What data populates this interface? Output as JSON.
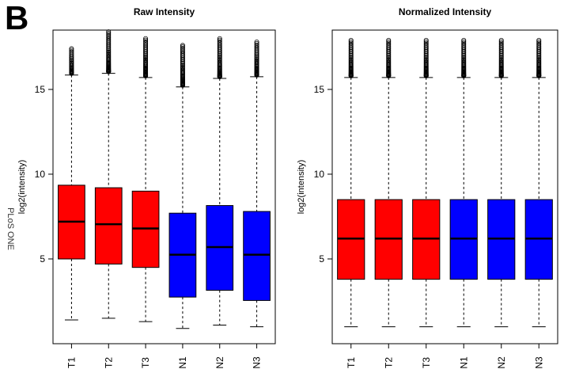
{
  "panel_label": "B",
  "side_text": "PLoS ONE",
  "colors": {
    "tumor": "#ff0000",
    "normal": "#0000ff",
    "outlier": "#000000"
  },
  "chart_data": [
    {
      "type": "box",
      "title": "Raw Intensity",
      "xlabel": "",
      "ylabel": "log2(intensity)",
      "ylim": [
        0,
        18.5
      ],
      "yticks": [
        5,
        10,
        15
      ],
      "grid": false,
      "categories": [
        "T1",
        "T2",
        "T3",
        "N1",
        "N2",
        "N3"
      ],
      "groups": [
        "tumor",
        "tumor",
        "tumor",
        "normal",
        "normal",
        "normal"
      ],
      "boxes": [
        {
          "min": 1.4,
          "q1": 5.0,
          "median": 7.2,
          "q3": 9.35,
          "max": 15.85,
          "outlier_max": 17.4
        },
        {
          "min": 1.5,
          "q1": 4.7,
          "median": 7.05,
          "q3": 9.2,
          "max": 15.95,
          "outlier_max": 18.4
        },
        {
          "min": 1.3,
          "q1": 4.5,
          "median": 6.8,
          "q3": 9.0,
          "max": 15.7,
          "outlier_max": 18.0
        },
        {
          "min": 0.9,
          "q1": 2.75,
          "median": 5.25,
          "q3": 7.7,
          "max": 15.15,
          "outlier_max": 17.6
        },
        {
          "min": 1.1,
          "q1": 3.15,
          "median": 5.7,
          "q3": 8.15,
          "max": 15.65,
          "outlier_max": 18.0
        },
        {
          "min": 1.0,
          "q1": 2.55,
          "median": 5.25,
          "q3": 7.8,
          "max": 15.75,
          "outlier_max": 17.8
        }
      ]
    },
    {
      "type": "box",
      "title": "Normalized Intensity",
      "xlabel": "",
      "ylabel": "log2(intensity)",
      "ylim": [
        0,
        18.5
      ],
      "yticks": [
        5,
        10,
        15
      ],
      "grid": false,
      "categories": [
        "T1",
        "T2",
        "T3",
        "N1",
        "N2",
        "N3"
      ],
      "groups": [
        "tumor",
        "tumor",
        "tumor",
        "normal",
        "normal",
        "normal"
      ],
      "boxes": [
        {
          "min": 1.0,
          "q1": 3.8,
          "median": 6.2,
          "q3": 8.5,
          "max": 15.7,
          "outlier_max": 17.9
        },
        {
          "min": 1.0,
          "q1": 3.8,
          "median": 6.2,
          "q3": 8.5,
          "max": 15.7,
          "outlier_max": 17.9
        },
        {
          "min": 1.0,
          "q1": 3.8,
          "median": 6.2,
          "q3": 8.5,
          "max": 15.7,
          "outlier_max": 17.9
        },
        {
          "min": 1.0,
          "q1": 3.8,
          "median": 6.2,
          "q3": 8.5,
          "max": 15.7,
          "outlier_max": 17.9
        },
        {
          "min": 1.0,
          "q1": 3.8,
          "median": 6.2,
          "q3": 8.5,
          "max": 15.7,
          "outlier_max": 17.9
        },
        {
          "min": 1.0,
          "q1": 3.8,
          "median": 6.2,
          "q3": 8.5,
          "max": 15.7,
          "outlier_max": 17.9
        }
      ]
    }
  ]
}
